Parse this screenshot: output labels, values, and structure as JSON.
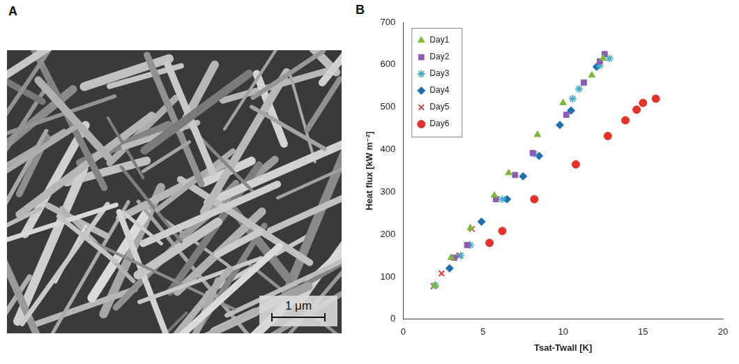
{
  "panel_a": {
    "label": "A",
    "scale_bar": "1 μm"
  },
  "chart_data": {
    "panel_label": "B",
    "type": "scatter",
    "x_label": "Tsat-Twall [K]",
    "y_label": "Heat flux [kW m⁻²]",
    "xlim": [
      0,
      20
    ],
    "xticks": [
      0,
      5,
      10,
      15,
      20
    ],
    "ylim": [
      0,
      700
    ],
    "yticks": [
      0,
      100,
      200,
      300,
      400,
      500,
      600,
      700
    ],
    "grid": false,
    "legend": "upper left",
    "series": [
      {
        "name": "Day1",
        "color": "#7cb83e",
        "marker": "triangle",
        "x": [
          2.0,
          3.0,
          4.2,
          5.7,
          6.6,
          8.4,
          10.0,
          11.8,
          12.5
        ],
        "values": [
          80,
          145,
          215,
          292,
          345,
          435,
          510,
          575,
          615
        ]
      },
      {
        "name": "Day2",
        "color": "#8e5bb5",
        "marker": "square",
        "x": [
          3.2,
          4.0,
          5.8,
          7.0,
          8.1,
          10.2,
          11.3,
          12.3,
          12.6
        ],
        "values": [
          145,
          175,
          283,
          340,
          392,
          482,
          558,
          608,
          625
        ]
      },
      {
        "name": "Day3",
        "color": "#4bacc6",
        "marker": "star",
        "x": [
          2.0,
          3.6,
          4.2,
          6.2,
          8.2,
          10.6,
          11.0,
          12.3,
          12.9
        ],
        "values": [
          80,
          150,
          175,
          283,
          390,
          520,
          543,
          598,
          615
        ]
      },
      {
        "name": "Day4",
        "color": "#1f6fb5",
        "marker": "diamond",
        "x": [
          2.9,
          4.9,
          6.5,
          7.5,
          8.5,
          9.8,
          10.5,
          12.1
        ],
        "values": [
          120,
          230,
          283,
          337,
          385,
          458,
          492,
          595
        ]
      },
      {
        "name": "Day5",
        "color": "#d9332b",
        "marker": "x",
        "x": [
          1.9,
          2.4,
          3.5,
          4.3
        ],
        "values": [
          78,
          108,
          150,
          213
        ]
      },
      {
        "name": "Day6",
        "color": "#e8302a",
        "marker": "circle",
        "x": [
          5.4,
          6.2,
          8.2,
          10.8,
          12.8,
          13.9,
          14.6,
          15.0,
          15.8
        ],
        "values": [
          180,
          208,
          283,
          365,
          432,
          469,
          494,
          510,
          520
        ]
      }
    ]
  }
}
